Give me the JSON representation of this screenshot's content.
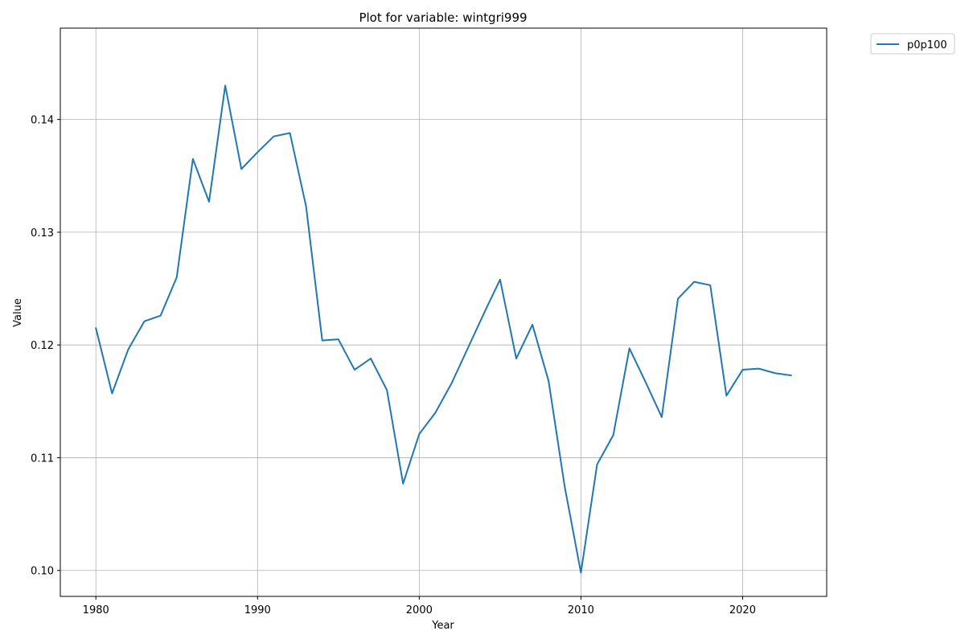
{
  "chart_data": {
    "type": "line",
    "title": "Plot for variable: wintgri999",
    "xlabel": "Year",
    "ylabel": "Value",
    "xlim": [
      1977.8,
      2025.2
    ],
    "ylim": [
      0.0977,
      0.1481
    ],
    "xticks": [
      1980,
      1990,
      2000,
      2010,
      2020
    ],
    "yticks": [
      0.1,
      0.11,
      0.12,
      0.13,
      0.14
    ],
    "grid": true,
    "legend_position": "outside top-right",
    "color": "#1f77b4",
    "series": [
      {
        "name": "p0p100",
        "x": [
          1980,
          1981,
          1982,
          1983,
          1984,
          1985,
          1986,
          1987,
          1988,
          1989,
          1990,
          1991,
          1992,
          1993,
          1994,
          1995,
          1996,
          1997,
          1998,
          1999,
          2000,
          2001,
          2002,
          2003,
          2004,
          2005,
          2006,
          2007,
          2008,
          2009,
          2010,
          2011,
          2012,
          2013,
          2014,
          2015,
          2016,
          2017,
          2018,
          2019,
          2020,
          2021,
          2022,
          2023
        ],
        "values": [
          0.1215,
          0.1157,
          0.1196,
          0.1221,
          0.1226,
          0.126,
          0.1365,
          0.1327,
          0.143,
          0.1356,
          0.1371,
          0.1385,
          0.1388,
          0.1323,
          0.1204,
          0.1205,
          0.1178,
          0.1188,
          0.116,
          0.1077,
          0.1121,
          0.114,
          0.1166,
          0.1197,
          0.1228,
          0.1258,
          0.1188,
          0.1218,
          0.1168,
          0.1074,
          0.0998,
          0.1094,
          0.112,
          0.1197,
          0.1167,
          0.1136,
          0.1241,
          0.1256,
          0.1253,
          0.1155,
          0.1178,
          0.1179,
          0.1175,
          0.1173
        ]
      }
    ]
  }
}
